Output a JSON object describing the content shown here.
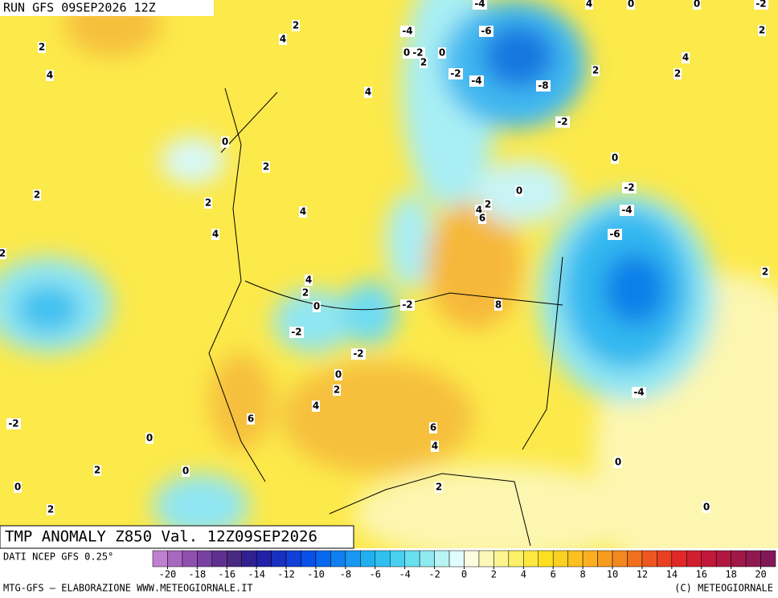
{
  "header": {
    "run": "RUN GFS 09SEP2026 12Z",
    "title": "TMP ANOMALY Z850 Val. 12Z09SEP2026"
  },
  "contour_labels": [
    -4,
    4,
    0,
    0,
    -2,
    2,
    4,
    -4,
    -6,
    2,
    2,
    4,
    0,
    -2,
    2,
    0,
    4,
    2,
    2,
    -2,
    -4,
    -8,
    4,
    -2,
    0,
    2,
    0,
    2,
    2,
    -2,
    0,
    4,
    2,
    6,
    4,
    -4,
    4,
    -6,
    2,
    2,
    4,
    2,
    0,
    -2,
    8,
    -2,
    -2,
    0,
    2,
    4,
    -4,
    -2,
    6,
    6,
    0,
    4,
    0,
    2,
    0,
    0,
    2,
    2,
    0
  ],
  "colorbar": {
    "lim": [
      -21,
      21
    ],
    "ticks": [
      -20,
      -18,
      -16,
      -14,
      -12,
      -10,
      -8,
      -6,
      -4,
      -2,
      0,
      2,
      4,
      6,
      8,
      10,
      12,
      14,
      16,
      18,
      20
    ],
    "colors": [
      "#c080d0",
      "#a868c0",
      "#9050b0",
      "#7840a0",
      "#603090",
      "#482880",
      "#302090",
      "#2020a8",
      "#1830c0",
      "#1040d8",
      "#0850e8",
      "#0868f0",
      "#1080f0",
      "#1898f0",
      "#20b0f0",
      "#30c0f0",
      "#48d0f0",
      "#68e0f0",
      "#90eaf0",
      "#b8f4f4",
      "#e0fcfc",
      "#fcfce0",
      "#fcf8b8",
      "#fcf490",
      "#fcf068",
      "#fce840",
      "#fce020",
      "#fcd020",
      "#fcc020",
      "#fcb020",
      "#f89c20",
      "#f48820",
      "#f07020",
      "#ec5820",
      "#e84020",
      "#e02828",
      "#d02030",
      "#c01838",
      "#b01840",
      "#a01848",
      "#901850",
      "#801858"
    ]
  },
  "footer": {
    "source": "DATI NCEP GFS 0.25°",
    "credit": "MTG-GFS – ELABORAZIONE WWW.METEOGIORNALE.IT",
    "copyright": "(C) METEOGIORNALE"
  }
}
